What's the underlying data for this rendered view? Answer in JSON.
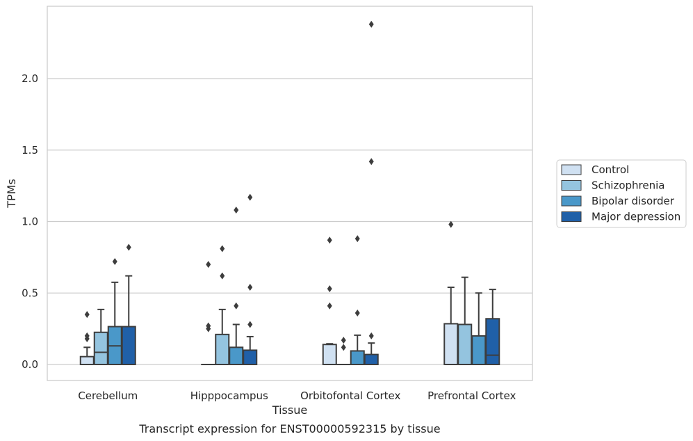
{
  "chart_data": {
    "type": "boxplot",
    "title": "",
    "caption": "Transcript expression for ENST00000592315 by tissue",
    "xlabel": "Tissue",
    "ylabel": "TPMs",
    "ylim": [
      -0.115,
      2.5
    ],
    "yticks": [
      0.0,
      0.5,
      1.0,
      1.5,
      2.0
    ],
    "ytick_labels": [
      "0.0",
      "0.5",
      "1.0",
      "1.5",
      "2.0"
    ],
    "grid": "horizontal",
    "legend_position": "right",
    "categories": [
      "Cerebellum",
      "Hipppocampus",
      "Orbitofontal Cortex",
      "Prefrontal Cortex"
    ],
    "series": [
      {
        "name": "Control",
        "color": "#d0e1f2",
        "boxes": [
          {
            "q1": 0.0,
            "median": 0.0,
            "q3": 0.055,
            "whisker_low": 0.0,
            "whisker_high": 0.12,
            "outliers": [
              0.18,
              0.2,
              0.35
            ]
          },
          {
            "q1": 0.0,
            "median": 0.0,
            "q3": 0.0,
            "whisker_low": 0.0,
            "whisker_high": 0.0,
            "outliers": [
              0.25,
              0.27,
              0.7
            ]
          },
          {
            "q1": 0.0,
            "median": 0.0,
            "q3": 0.14,
            "whisker_low": 0.0,
            "whisker_high": 0.145,
            "outliers": [
              0.41,
              0.53,
              0.87
            ]
          },
          {
            "q1": 0.0,
            "median": 0.0,
            "q3": 0.285,
            "whisker_low": 0.0,
            "whisker_high": 0.54,
            "outliers": [
              0.98
            ]
          }
        ]
      },
      {
        "name": "Schizophrenia",
        "color": "#94c4df",
        "boxes": [
          {
            "q1": 0.0,
            "median": 0.085,
            "q3": 0.225,
            "whisker_low": 0.0,
            "whisker_high": 0.385,
            "outliers": []
          },
          {
            "q1": 0.0,
            "median": 0.0,
            "q3": 0.21,
            "whisker_low": 0.0,
            "whisker_high": 0.385,
            "outliers": [
              0.62,
              0.81
            ]
          },
          {
            "q1": 0.0,
            "median": 0.0,
            "q3": 0.0,
            "whisker_low": 0.0,
            "whisker_high": 0.0,
            "outliers": [
              0.12,
              0.17
            ]
          },
          {
            "q1": 0.0,
            "median": 0.0,
            "q3": 0.28,
            "whisker_low": 0.0,
            "whisker_high": 0.61,
            "outliers": []
          }
        ]
      },
      {
        "name": "Bipolar disorder",
        "color": "#4a98c9",
        "boxes": [
          {
            "q1": 0.0,
            "median": 0.13,
            "q3": 0.265,
            "whisker_low": 0.0,
            "whisker_high": 0.575,
            "outliers": [
              0.72
            ]
          },
          {
            "q1": 0.0,
            "median": 0.0,
            "q3": 0.12,
            "whisker_low": 0.0,
            "whisker_high": 0.28,
            "outliers": [
              0.41,
              1.08
            ]
          },
          {
            "q1": 0.0,
            "median": 0.0,
            "q3": 0.095,
            "whisker_low": 0.0,
            "whisker_high": 0.205,
            "outliers": [
              0.36,
              0.88
            ]
          },
          {
            "q1": 0.0,
            "median": 0.0,
            "q3": 0.2,
            "whisker_low": 0.0,
            "whisker_high": 0.5,
            "outliers": []
          }
        ]
      },
      {
        "name": "Major depression",
        "color": "#2060a8",
        "boxes": [
          {
            "q1": 0.0,
            "median": 0.0,
            "q3": 0.265,
            "whisker_low": 0.0,
            "whisker_high": 0.62,
            "outliers": [
              0.82
            ]
          },
          {
            "q1": 0.0,
            "median": 0.0,
            "q3": 0.1,
            "whisker_low": 0.0,
            "whisker_high": 0.195,
            "outliers": [
              0.28,
              0.54,
              1.17
            ]
          },
          {
            "q1": 0.0,
            "median": 0.0,
            "q3": 0.07,
            "whisker_low": 0.0,
            "whisker_high": 0.15,
            "outliers": [
              0.2,
              1.42,
              2.38
            ]
          },
          {
            "q1": 0.0,
            "median": 0.065,
            "q3": 0.32,
            "whisker_low": 0.0,
            "whisker_high": 0.525,
            "outliers": []
          }
        ]
      }
    ]
  }
}
